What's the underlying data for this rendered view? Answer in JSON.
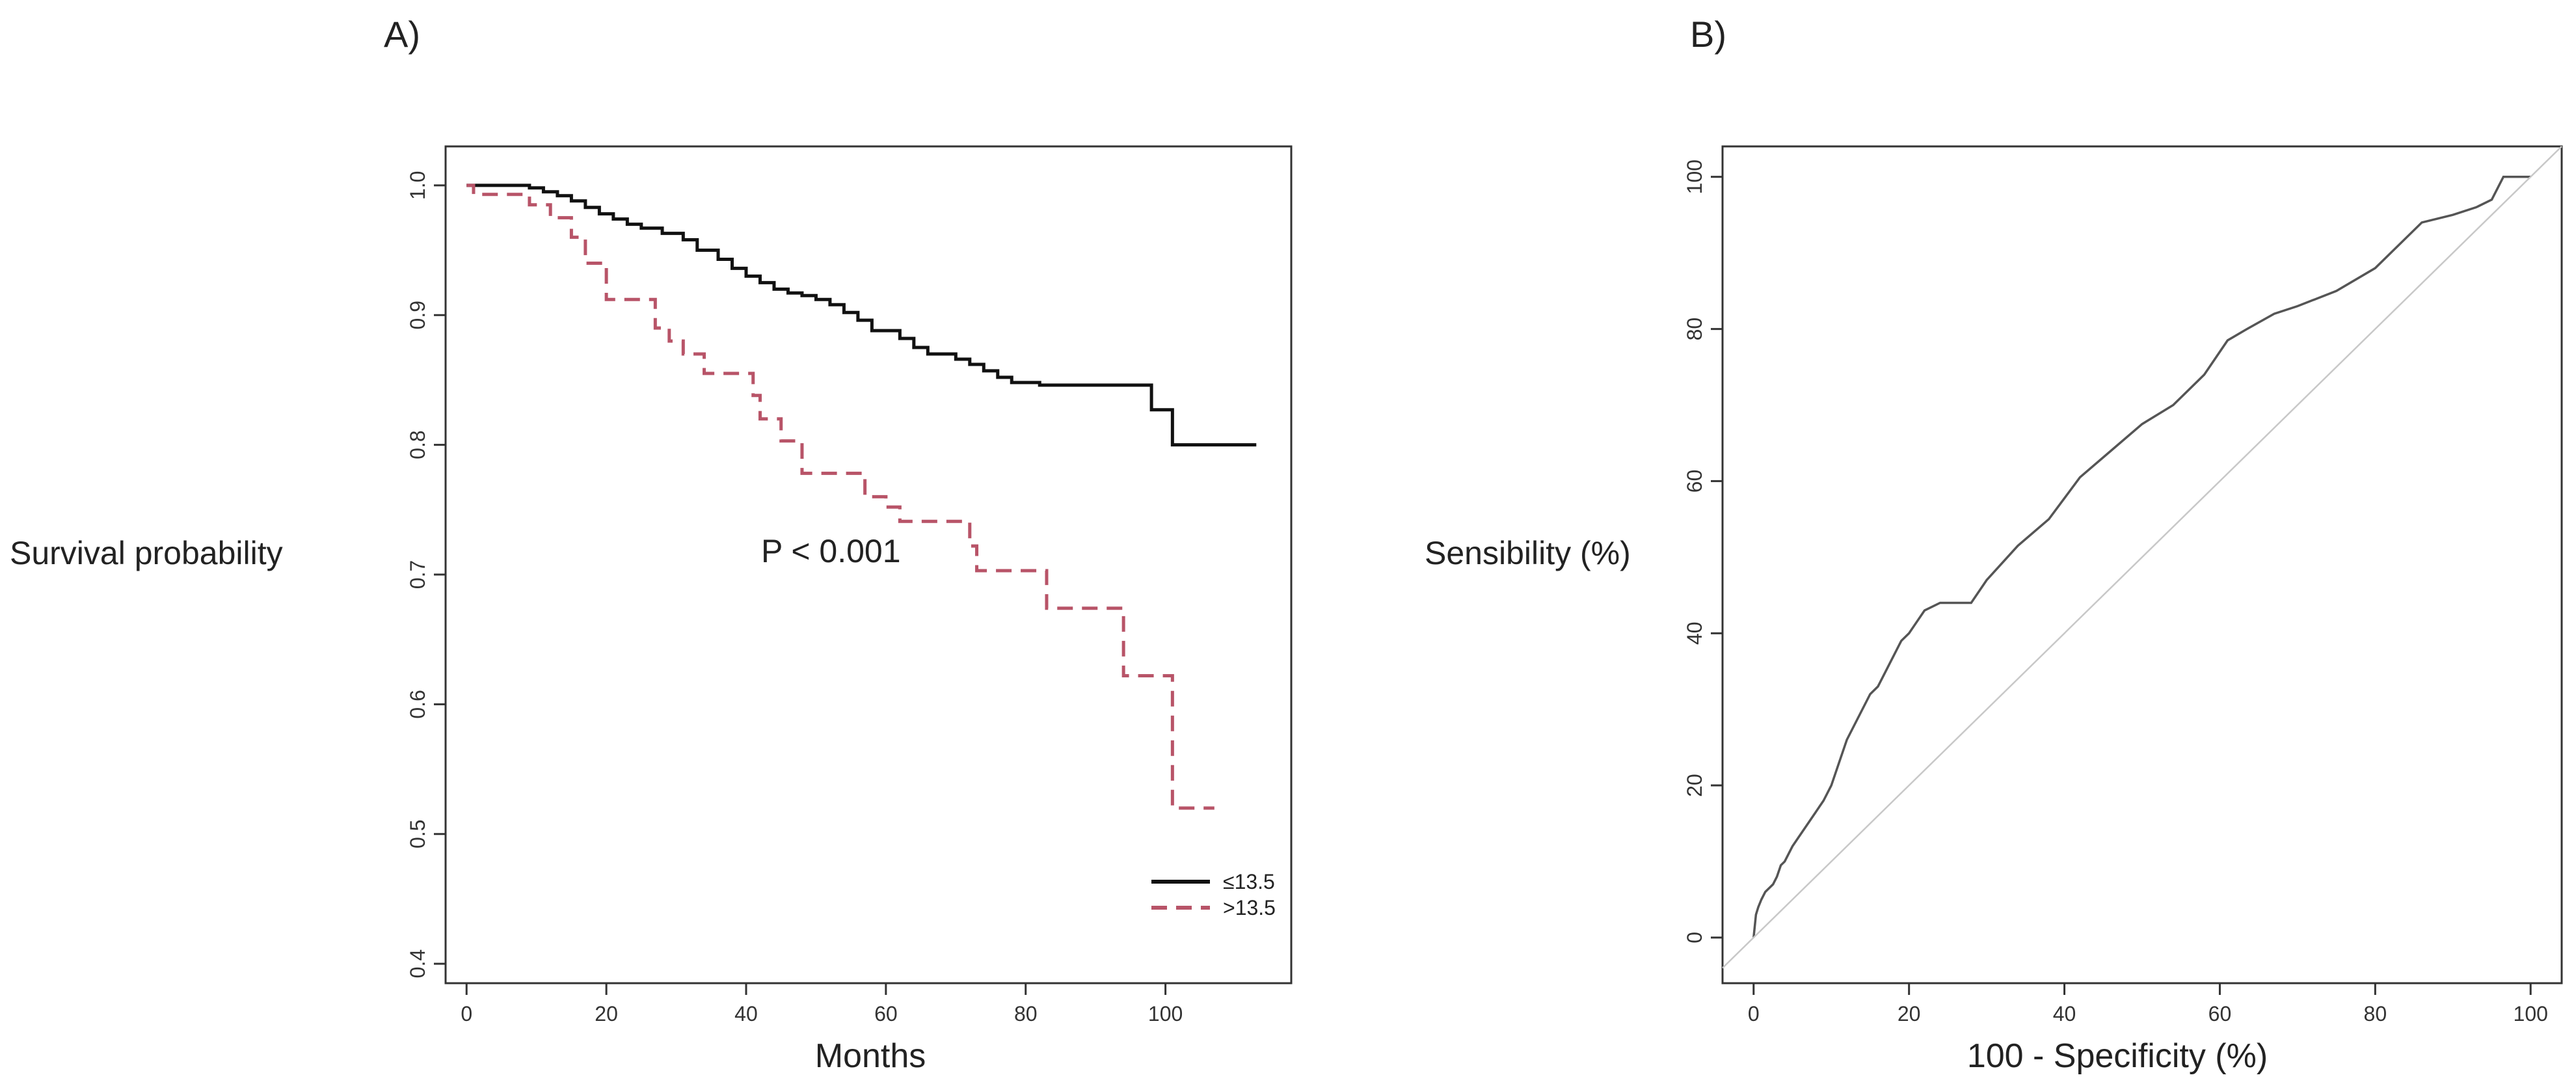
{
  "chart_data": [
    {
      "type": "line",
      "panel_label": "A)",
      "title": "",
      "xlabel": "Months",
      "ylabel": "Survival probability",
      "xlim": [
        -3,
        118
      ],
      "ylim": [
        0.385,
        1.03
      ],
      "x_ticks": [
        0,
        20,
        40,
        60,
        80,
        100
      ],
      "y_ticks": [
        0.4,
        0.5,
        0.6,
        0.7,
        0.8,
        0.9,
        1.0
      ],
      "y_tick_labels": [
        "0.4",
        "0.5",
        "0.6",
        "0.7",
        "0.8",
        "0.9",
        "1.0"
      ],
      "grid": false,
      "legend_position": "bottom-right",
      "annotation": "P < 0.001",
      "annotation_at": {
        "x": 53,
        "y": 0.702
      },
      "series": [
        {
          "name": "≤13.5",
          "color": "#111111",
          "style": "solid",
          "x": [
            0,
            9,
            11,
            13,
            15,
            17,
            19,
            21,
            23,
            25,
            28,
            31,
            33,
            36,
            38,
            40,
            42,
            44,
            46,
            48,
            50,
            52,
            54,
            56,
            58,
            62,
            64,
            66,
            70,
            72,
            74,
            76,
            78,
            82,
            98,
            101,
            113
          ],
          "y": [
            1.0,
            0.998,
            0.995,
            0.992,
            0.988,
            0.983,
            0.978,
            0.974,
            0.97,
            0.967,
            0.963,
            0.958,
            0.95,
            0.943,
            0.936,
            0.93,
            0.925,
            0.92,
            0.917,
            0.915,
            0.912,
            0.908,
            0.902,
            0.896,
            0.888,
            0.882,
            0.875,
            0.87,
            0.866,
            0.862,
            0.857,
            0.852,
            0.848,
            0.846,
            0.827,
            0.8,
            0.8
          ]
        },
        {
          "name": ">13.5",
          "color": "#b85468",
          "style": "dashed",
          "x": [
            0,
            1,
            9,
            12,
            15,
            17,
            20,
            27,
            29,
            31,
            34,
            41,
            42,
            45,
            48,
            53,
            57,
            60,
            62,
            66,
            72,
            73,
            77,
            83,
            86,
            94,
            100,
            101,
            107
          ],
          "y": [
            1.0,
            0.993,
            0.985,
            0.975,
            0.96,
            0.94,
            0.912,
            0.89,
            0.88,
            0.87,
            0.855,
            0.838,
            0.82,
            0.803,
            0.778,
            0.778,
            0.76,
            0.752,
            0.741,
            0.741,
            0.722,
            0.703,
            0.703,
            0.674,
            0.674,
            0.622,
            0.622,
            0.52,
            0.52
          ]
        }
      ]
    },
    {
      "type": "line",
      "panel_label": "B)",
      "title": "",
      "xlabel": "100 - Specificity (%)",
      "ylabel": "Sensibility (%)",
      "xlim": [
        -4,
        104
      ],
      "ylim": [
        -6,
        104
      ],
      "x_ticks": [
        0,
        20,
        40,
        60,
        80,
        100
      ],
      "y_ticks": [
        0,
        20,
        40,
        60,
        80,
        100
      ],
      "y_tick_labels": [
        "0",
        "20",
        "40",
        "60",
        "80",
        "100"
      ],
      "grid": false,
      "series": [
        {
          "name": "ROC curve",
          "color": "#555555",
          "style": "solid",
          "x": [
            0,
            0.3,
            0.6,
            1,
            1.5,
            2,
            2.5,
            3,
            3.5,
            4,
            5,
            6,
            7,
            8,
            9,
            10,
            11,
            12,
            13,
            14,
            15,
            16,
            17,
            18,
            19,
            20,
            21,
            22,
            24,
            26,
            28,
            30,
            34,
            38,
            42,
            46,
            50,
            54,
            58,
            61,
            63.5,
            67,
            70,
            75,
            80,
            83,
            86,
            90,
            93,
            95,
            96.5,
            98,
            100
          ],
          "y": [
            0,
            3,
            4,
            5,
            6,
            6.5,
            7,
            8,
            9.5,
            10,
            12,
            13.5,
            15,
            16.5,
            18,
            20,
            23,
            26,
            28,
            30,
            32,
            33,
            35,
            37,
            39,
            40,
            41.5,
            43,
            44,
            44,
            44,
            47,
            51.5,
            55,
            60.5,
            64,
            67.5,
            70,
            74,
            78.5,
            80,
            82,
            83,
            85,
            88,
            91,
            94,
            95,
            96,
            97,
            100,
            100,
            100
          ]
        },
        {
          "name": "Reference line",
          "color": "#c8c8c8",
          "style": "solid",
          "x": [
            -4,
            104
          ],
          "y": [
            -4,
            104
          ]
        }
      ]
    }
  ]
}
